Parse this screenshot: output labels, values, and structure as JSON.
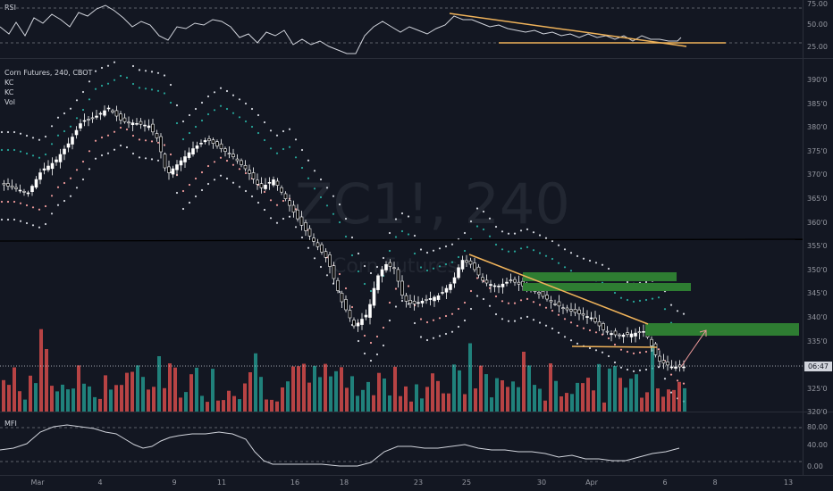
{
  "rsi": {
    "label": "RSI",
    "ticks": [
      "75.00",
      "50.00",
      "25.00"
    ]
  },
  "main": {
    "title": "Corn Futures, 240, CBOT",
    "indicators": [
      "KC",
      "KC",
      "Vol"
    ],
    "watermark_symbol": "ZC1!, 240",
    "watermark_name": "Corn Futures",
    "price_ticks": [
      "390'0",
      "385'0",
      "380'0",
      "375'0",
      "370'0",
      "365'0",
      "360'0",
      "355'0",
      "350'0",
      "345'0",
      "340'0",
      "335'0",
      "330'0",
      "325'0",
      "320'0"
    ],
    "last_price_tag": "06:47"
  },
  "mfi": {
    "label": "MFI",
    "ticks": [
      "80.00",
      "40.00",
      "0.00"
    ]
  },
  "time_axis": [
    "Mar",
    "4",
    "9",
    "11",
    "16",
    "18",
    "23",
    "25",
    "30",
    "Apr",
    "6",
    "8",
    "13"
  ],
  "colors": {
    "background": "#131722",
    "up": "#ffffff",
    "down": "#000000",
    "keltner_outer": "#d1d4dc",
    "keltner_mid": "#26a69a",
    "keltner_inner": "#ef9a9a",
    "volume_up": "#26a69a",
    "volume_down": "#ef5350",
    "trendline": "#f0b35a",
    "zone": "#2e7d32"
  }
}
